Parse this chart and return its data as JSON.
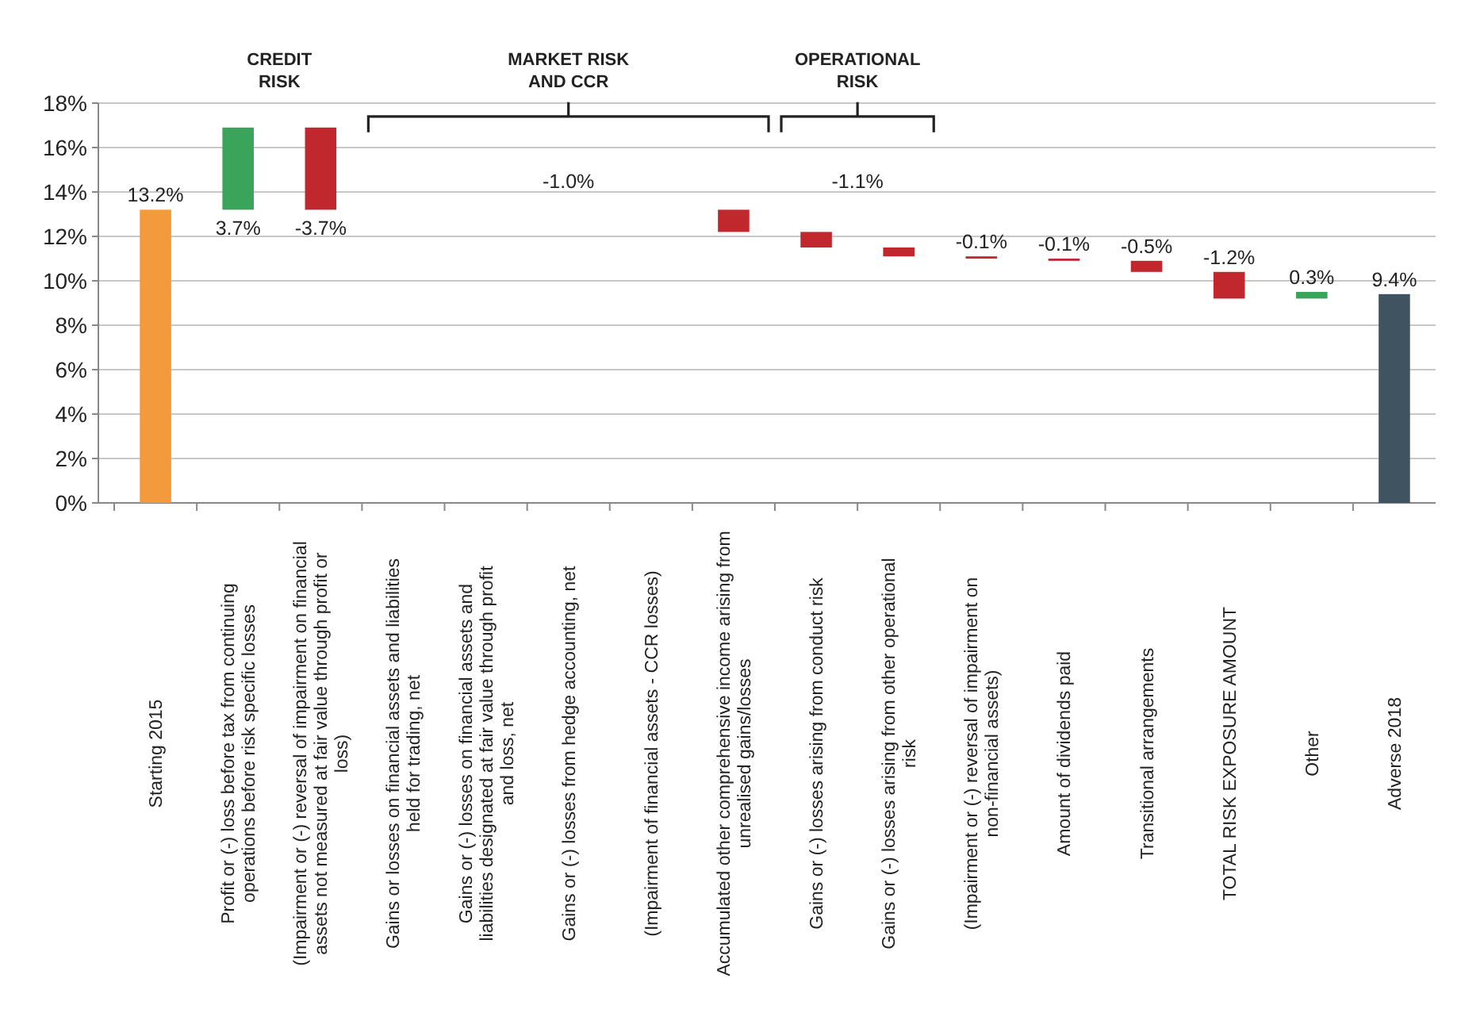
{
  "chart_data": {
    "type": "bar",
    "categories": [
      "Starting 2015",
      "Profit or (-) loss before tax from continuing operations before risk specific losses",
      "(Impairment or (-) reversal of impairment on financial assets not measured at fair value through profit or loss)",
      "Gains or losses on financial assets and liabilities held for trading, net",
      "Gains or (-) losses on financial assets and liabilities designated at fair value through profit and loss, net",
      "Gains or (-) losses from hedge accounting, net",
      "(Impairment of financial assets - CCR losses)",
      "Accumulated other comprehensive income arising from unrealised gains/losses",
      "Gains or (-) losses arising from conduct risk",
      "Gains or (-) losses arising from other operational risk",
      "(Impairment or (-) reversal of impairment on non-financial assets)",
      "Amount of dividends paid",
      "Transitional arrangements",
      "TOTAL RISK EXPOSURE AMOUNT",
      "Other",
      "Adverse 2018"
    ],
    "values": [
      13.2,
      3.7,
      -3.7,
      null,
      null,
      null,
      null,
      -1.0,
      -0.7,
      -0.4,
      -0.1,
      -0.1,
      -0.5,
      -1.2,
      0.3,
      9.4
    ],
    "base": [
      0,
      13.2,
      16.9,
      null,
      null,
      null,
      null,
      13.2,
      12.2,
      11.5,
      11.1,
      11.0,
      10.9,
      10.4,
      9.2,
      0
    ],
    "colors": [
      "#f39a3c",
      "#3aa55a",
      "#c0282d",
      null,
      null,
      null,
      null,
      "#c0282d",
      "#c0282d",
      "#c0282d",
      "#c0282d",
      "#c0282d",
      "#c0282d",
      "#c0282d",
      "#3aa55a",
      "#3f5360"
    ],
    "value_labels": [
      "13.2%",
      "3.7%",
      "-3.7%",
      null,
      null,
      null,
      null,
      null,
      null,
      null,
      "-0.1%",
      "-0.1%",
      "-0.5%",
      "-1.2%",
      "0.3%",
      "9.4%"
    ],
    "ylim": [
      0,
      18
    ],
    "yticks": [
      {
        "value": 0,
        "label": "0%"
      },
      {
        "value": 2,
        "label": "2%"
      },
      {
        "value": 4,
        "label": "4%"
      },
      {
        "value": 6,
        "label": "6%"
      },
      {
        "value": 8,
        "label": "8%"
      },
      {
        "value": 10,
        "label": "10%"
      },
      {
        "value": 12,
        "label": "12%"
      },
      {
        "value": 14,
        "label": "14%"
      },
      {
        "value": 16,
        "label": "16%"
      },
      {
        "value": 18,
        "label": "18%"
      }
    ],
    "grid": "y",
    "annotations": [
      "CREDIT RISK",
      "MARKET RISK AND CCR",
      "-1.0%",
      "OPERATIONAL RISK",
      "-1.1%"
    ]
  }
}
